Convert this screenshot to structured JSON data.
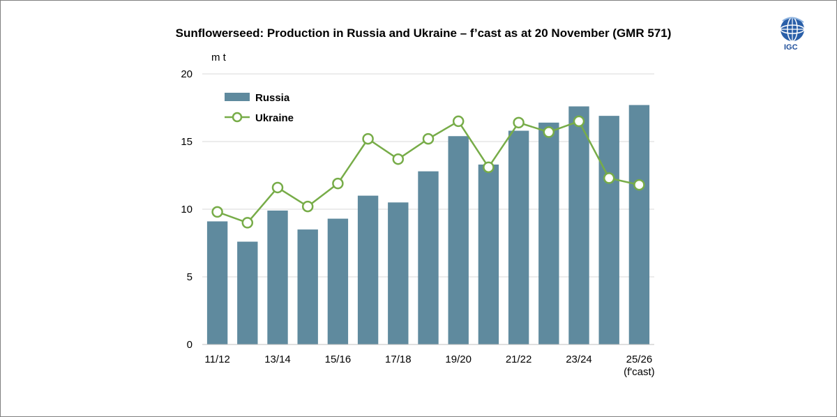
{
  "chart_data": {
    "type": "bar",
    "title": "Sunflowerseed: Production in Russia and Ukraine – f’cast as at 20 November (GMR 571)",
    "ylabel": "m t",
    "ylim": [
      0,
      20
    ],
    "yticks": [
      0,
      5,
      10,
      15,
      20
    ],
    "categories": [
      "11/12",
      "12/13",
      "13/14",
      "14/15",
      "15/16",
      "16/17",
      "17/18",
      "18/19",
      "19/20",
      "20/21",
      "21/22",
      "22/23",
      "23/24",
      "24/25",
      "25/26"
    ],
    "xtick_labels": [
      "11/12",
      "",
      "13/14",
      "",
      "15/16",
      "",
      "17/18",
      "",
      "19/20",
      "",
      "21/22",
      "",
      "23/24",
      "",
      "25/26"
    ],
    "xtick_note": "(f'cast)",
    "series": [
      {
        "name": "Russia",
        "kind": "bar",
        "color": "#5f8a9e",
        "values": [
          9.1,
          7.6,
          9.9,
          8.5,
          9.3,
          11.0,
          10.5,
          12.8,
          15.4,
          13.3,
          15.8,
          16.4,
          17.6,
          16.9,
          17.7
        ]
      },
      {
        "name": "Ukraine",
        "kind": "line",
        "color": "#77ac48",
        "values": [
          9.8,
          9.0,
          11.6,
          10.2,
          11.9,
          15.2,
          13.7,
          15.2,
          16.5,
          13.1,
          16.4,
          15.7,
          16.5,
          12.3,
          11.8
        ]
      }
    ],
    "legend_position": "top-left",
    "grid": true
  },
  "logo": {
    "text": "IGC"
  }
}
